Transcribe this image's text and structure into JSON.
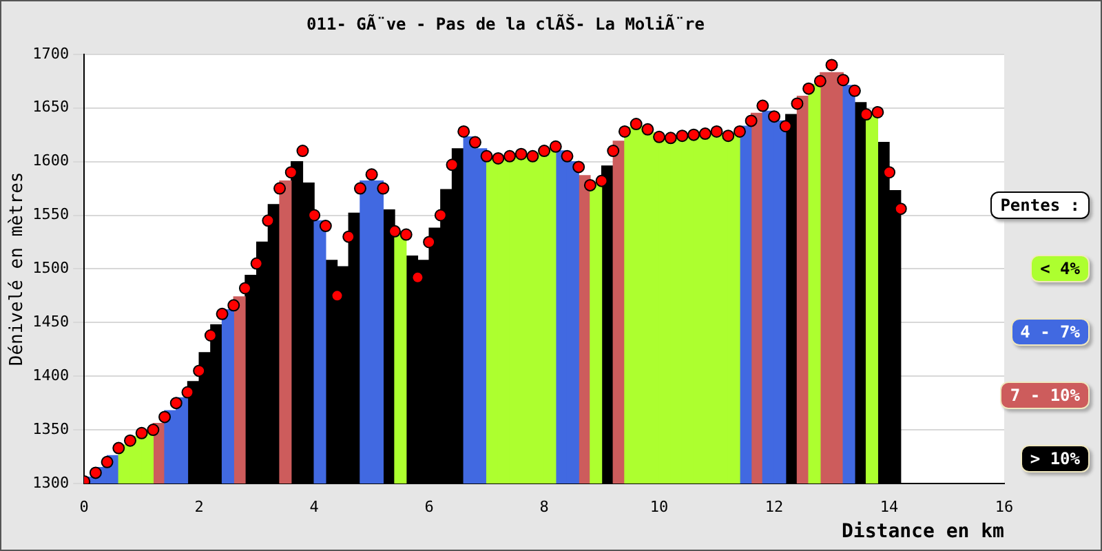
{
  "chart_data": {
    "type": "bar",
    "title": "011- GÃ¨ve - Pas de la clÃŠ- La MoliÃ¨re",
    "xlabel": "Distance en km",
    "ylabel": "Dénivelé en mètres",
    "legend_title": "Pentes :",
    "legend": "right",
    "grid": "y",
    "xlim": [
      0,
      16
    ],
    "xticks": [
      0,
      2,
      4,
      6,
      8,
      10,
      12,
      14,
      16
    ],
    "ylim": [
      1300,
      1700
    ],
    "yticks": [
      1300,
      1350,
      1400,
      1450,
      1500,
      1550,
      1600,
      1650,
      1700
    ],
    "series": [
      {
        "name": "< 4%",
        "color": "#adff2f",
        "x": [
          0.7,
          0.9,
          1.1,
          5.5,
          7.1,
          7.3,
          7.5,
          7.7,
          7.9,
          8.1,
          8.9,
          9.5,
          9.7,
          9.9,
          10.1,
          10.3,
          10.5,
          10.7,
          10.9,
          11.1,
          11.3,
          12.7,
          13.7
        ],
        "values": [
          1336,
          1344,
          1348,
          1534,
          1604,
          1604,
          1606,
          1606,
          1608,
          1612,
          1580,
          1632,
          1633,
          1627,
          1622,
          1623,
          1624,
          1626,
          1627,
          1626,
          1626,
          1672,
          1645
        ]
      },
      {
        "name": "4 - 7%",
        "color": "#4169e1",
        "x": [
          0.1,
          0.3,
          0.5,
          1.5,
          1.7,
          2.5,
          4.1,
          4.9,
          5.1,
          6.7,
          6.9,
          8.3,
          8.5,
          11.5,
          11.9,
          12.1,
          13.3
        ],
        "values": [
          1306,
          1315,
          1326,
          1368,
          1380,
          1462,
          1545,
          1582,
          1582,
          1623,
          1612,
          1610,
          1600,
          1633,
          1647,
          1638,
          1671
        ]
      },
      {
        "name": "7 - 10%",
        "color": "#cd5c5c",
        "x": [
          1.3,
          2.7,
          3.5,
          8.7,
          9.3,
          11.7,
          12.5,
          12.9,
          13.1
        ],
        "values": [
          1356,
          1474,
          1582,
          1587,
          1619,
          1645,
          1661,
          1683,
          1683
        ]
      },
      {
        "name": "> 10%",
        "color": "#000000",
        "x": [
          1.9,
          2.1,
          2.3,
          2.9,
          3.1,
          3.3,
          3.7,
          3.9,
          4.3,
          4.5,
          4.7,
          5.3,
          5.7,
          5.9,
          6.1,
          6.3,
          6.5,
          9.1,
          12.3,
          13.5,
          13.9,
          14.1
        ],
        "values": [
          1395,
          1422,
          1448,
          1494,
          1525,
          1560,
          1600,
          1580,
          1508,
          1502,
          1552,
          1555,
          1512,
          1508,
          1538,
          1574,
          1612,
          1596,
          1644,
          1655,
          1618,
          1573
        ]
      },
      {
        "type": "scatter",
        "color": "#ff0000",
        "marker": "circle",
        "x": [
          0,
          0.2,
          0.4,
          0.6,
          0.8,
          1.0,
          1.2,
          1.4,
          1.6,
          1.8,
          2.0,
          2.2,
          2.4,
          2.6,
          2.8,
          3.0,
          3.2,
          3.4,
          3.6,
          3.8,
          4.0,
          4.2,
          4.4,
          4.6,
          4.8,
          5.0,
          5.2,
          5.4,
          5.6,
          5.8,
          6.0,
          6.2,
          6.4,
          6.6,
          6.8,
          7.0,
          7.2,
          7.4,
          7.6,
          7.8,
          8.0,
          8.2,
          8.4,
          8.6,
          8.8,
          9.0,
          9.2,
          9.4,
          9.6,
          9.8,
          10.0,
          10.2,
          10.4,
          10.6,
          10.8,
          11.0,
          11.2,
          11.4,
          11.6,
          11.8,
          12.0,
          12.2,
          12.4,
          12.6,
          12.8,
          13.0,
          13.2,
          13.4,
          13.6,
          13.8,
          14.0,
          14.2
        ],
        "values": [
          1302,
          1310,
          1320,
          1333,
          1340,
          1347,
          1350,
          1362,
          1375,
          1385,
          1405,
          1438,
          1458,
          1466,
          1482,
          1505,
          1545,
          1575,
          1590,
          1610,
          1550,
          1540,
          1475,
          1530,
          1575,
          1588,
          1575,
          1535,
          1532,
          1492,
          1525,
          1550,
          1597,
          1628,
          1618,
          1605,
          1603,
          1605,
          1607,
          1605,
          1610,
          1614,
          1605,
          1595,
          1578,
          1582,
          1610,
          1628,
          1635,
          1630,
          1623,
          1622,
          1624,
          1625,
          1626,
          1628,
          1624,
          1628,
          1638,
          1652,
          1642,
          1633,
          1654,
          1668,
          1675,
          1690,
          1676,
          1666,
          1644,
          1646,
          1590,
          1556
        ]
      }
    ]
  }
}
